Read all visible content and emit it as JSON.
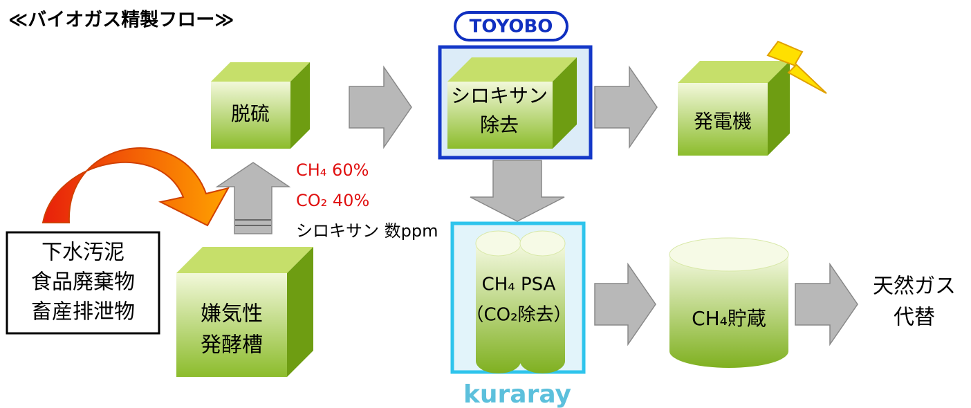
{
  "header": {
    "title": "≪バイオガス精製フロー≫"
  },
  "logos": {
    "toyobo": "TOYOBO",
    "kuraray": "kuraray"
  },
  "source": {
    "lines": [
      "下水汚泥",
      "食品廃棄物",
      "畜産排泄物"
    ]
  },
  "gas": {
    "lines": [
      "CH₄ 60%",
      "CO₂ 40%",
      "シロキサン 数ppm"
    ]
  },
  "nodes": [
    {
      "label": [
        "脱硫"
      ]
    },
    {
      "label": [
        "シロキサン",
        "除去"
      ]
    },
    {
      "label": [
        "発電機"
      ]
    },
    {
      "label": [
        "嫌気性",
        "発酵槽"
      ]
    },
    {
      "label": [
        "CH₄ PSA",
        "（CO₂除去）"
      ]
    },
    {
      "label": [
        "CH₄貯蔵"
      ]
    },
    {
      "label": [
        "天然ガス",
        "代替"
      ]
    }
  ]
}
